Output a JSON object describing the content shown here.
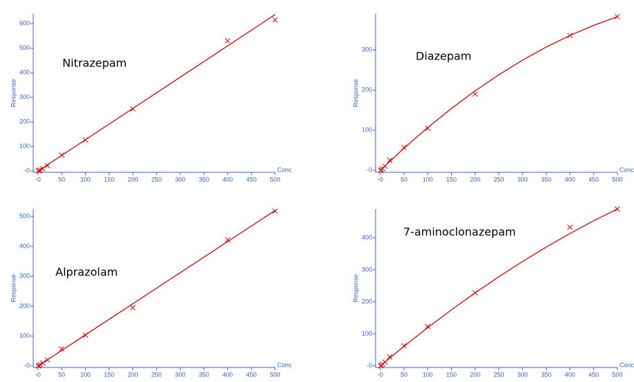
{
  "chart_data": [
    {
      "type": "scatter",
      "title": "Nitrazepam",
      "xlabel": "Conc",
      "ylabel": "Response",
      "color": "#e00000",
      "x": [
        1,
        2,
        5,
        10,
        20,
        50,
        100,
        200,
        400,
        500
      ],
      "values": [
        1,
        2,
        5,
        10,
        22,
        65,
        127,
        253,
        530,
        615
      ],
      "fit": {
        "x": [
          0,
          500
        ],
        "y": [
          0,
          637
        ]
      },
      "xlim": [
        -10,
        500
      ],
      "ylim": [
        -5,
        640
      ],
      "xticks": [
        {
          "value": 0,
          "label": "-0"
        },
        50,
        100,
        150,
        200,
        250,
        300,
        350,
        400,
        450,
        500
      ],
      "yticks": [
        {
          "value": 0,
          "label": "-0"
        },
        100,
        200,
        300,
        400,
        500,
        600
      ]
    },
    {
      "type": "scatter",
      "title": "Diazepam",
      "xlabel": "Conc",
      "ylabel": "Response",
      "color": "#e00000",
      "x": [
        1,
        2,
        5,
        10,
        20,
        50,
        100,
        200,
        400,
        500
      ],
      "values": [
        0,
        1,
        4,
        10,
        25,
        57,
        105,
        190,
        336,
        383
      ],
      "fit": {
        "x": [
          0,
          50,
          100,
          150,
          200,
          250,
          300,
          350,
          400,
          450,
          500
        ],
        "y": [
          0,
          55.1,
          106.4,
          154,
          197.9,
          238.1,
          274.5,
          307.2,
          336,
          361.3,
          382.8
        ]
      },
      "xlim": [
        -10,
        500
      ],
      "ylim": [
        -5,
        390
      ],
      "xticks": [
        {
          "value": 0,
          "label": "-0"
        },
        50,
        100,
        150,
        200,
        250,
        300,
        350,
        400,
        450,
        500
      ],
      "yticks": [
        {
          "value": 0,
          "label": "-0"
        },
        100,
        200,
        300
      ]
    },
    {
      "type": "scatter",
      "title": "Alprazolam",
      "xlabel": "Conc",
      "ylabel": "Response",
      "color": "#e00000",
      "x": [
        1,
        2,
        5,
        10,
        20,
        50,
        100,
        200,
        400,
        500
      ],
      "values": [
        0,
        2,
        5,
        10,
        20,
        57,
        103,
        195,
        422,
        518
      ],
      "fit": {
        "x": [
          0,
          500
        ],
        "y": [
          0,
          520
        ]
      },
      "xlim": [
        -10,
        500
      ],
      "ylim": [
        -5,
        525
      ],
      "xticks": [
        {
          "value": 0,
          "label": "-0"
        },
        50,
        100,
        150,
        200,
        250,
        300,
        350,
        400,
        450,
        500
      ],
      "yticks": [
        {
          "value": 0,
          "label": "-0"
        },
        100,
        200,
        300,
        400,
        500
      ]
    },
    {
      "type": "scatter",
      "title": "7-aminoclonazepam",
      "xlabel": "Conc",
      "ylabel": "Response",
      "color": "#e00000",
      "x": [
        1,
        2,
        5,
        10,
        20,
        50,
        100,
        200,
        400,
        500
      ],
      "values": [
        0,
        2,
        6,
        12,
        28,
        63,
        123,
        228,
        433,
        490
      ],
      "fit": {
        "x": [
          0,
          50,
          100,
          150,
          200,
          250,
          300,
          350,
          400,
          450,
          500
        ],
        "y": [
          0,
          61,
          119.3,
          175,
          228,
          278.4,
          326,
          371,
          413.4,
          453.1,
          490
        ]
      },
      "xlim": [
        -10,
        500
      ],
      "ylim": [
        -5,
        490
      ],
      "xticks": [
        {
          "value": 0,
          "label": "-0"
        },
        50,
        100,
        150,
        200,
        250,
        300,
        350,
        400,
        450,
        500
      ],
      "yticks": [
        {
          "value": 0,
          "label": "-0"
        },
        100,
        200,
        300,
        400
      ]
    }
  ]
}
